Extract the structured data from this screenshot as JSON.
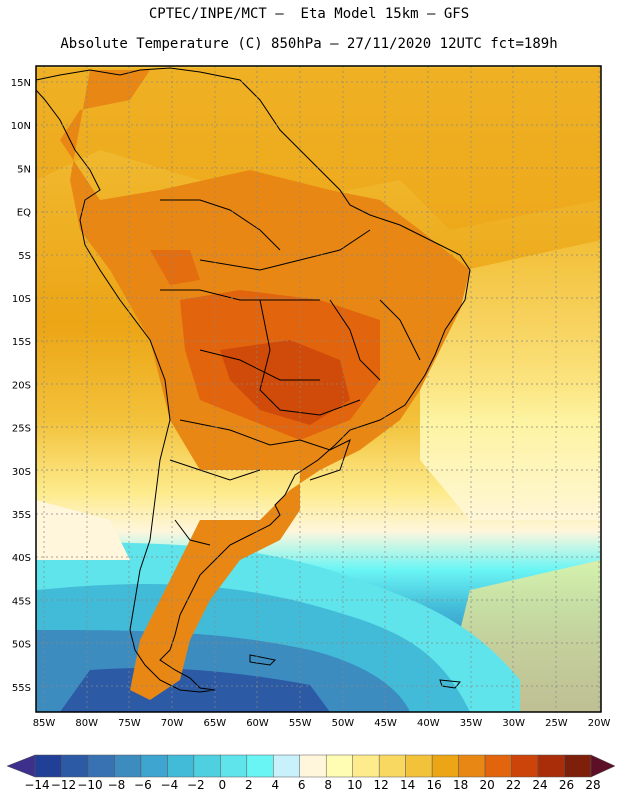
{
  "header": {
    "line1": "CPTEC/INPE/MCT –  Eta Model 15km – GFS",
    "line2": "Absolute Temperature (C) 850hPa – 27/11/2020 12UTC fct=189h"
  },
  "map": {
    "lat_labels": [
      "15N",
      "10N",
      "5N",
      "EQ",
      "5S",
      "10S",
      "15S",
      "20S",
      "25S",
      "30S",
      "35S",
      "40S",
      "45S",
      "50S",
      "55S"
    ],
    "lon_labels": [
      "85W",
      "80W",
      "75W",
      "70W",
      "65W",
      "60W",
      "55W",
      "50W",
      "45W",
      "40W",
      "35W",
      "30W",
      "25W",
      "20W"
    ]
  },
  "colorbar": {
    "labels": [
      "-14",
      "-12",
      "-10",
      "-8",
      "-6",
      "-4",
      "-2",
      "0",
      "2",
      "4",
      "6",
      "8",
      "10",
      "12",
      "14",
      "16",
      "18",
      "20",
      "22",
      "24",
      "26",
      "28"
    ],
    "colors": [
      "#3d2f8c",
      "#213f96",
      "#2c5aa5",
      "#3872b2",
      "#3c8cc0",
      "#3da5cf",
      "#42bbd9",
      "#4ed0e0",
      "#5ee4ea",
      "#6af5f5",
      "#c8f1fb",
      "#fff6dc",
      "#fffcb4",
      "#fdeb8c",
      "#f9d862",
      "#f3c23b",
      "#eca515",
      "#e88714",
      "#e2640d",
      "#cc4409",
      "#a82d08",
      "#7d1f0b",
      "#5c0f27"
    ]
  }
}
